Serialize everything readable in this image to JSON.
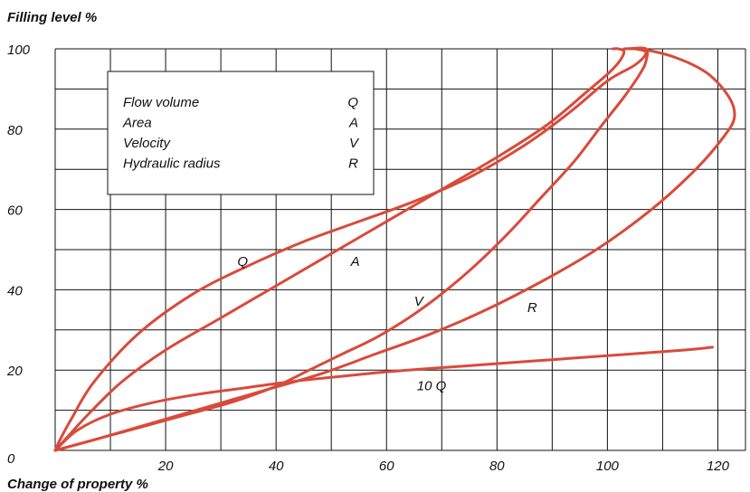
{
  "chart_data": {
    "type": "line",
    "ylabel": "Filling level %",
    "xlabel": "Change of property %",
    "xlim": [
      0,
      125
    ],
    "ylim": [
      0,
      100
    ],
    "x_ticks": [
      0,
      20,
      40,
      60,
      80,
      100,
      120
    ],
    "y_ticks": [
      20,
      40,
      60,
      80,
      100
    ],
    "x_grid_step": 10,
    "y_grid_step": 10,
    "grid": true,
    "line_color": "#d94a3a",
    "legend": {
      "position": "top-left",
      "entries": [
        {
          "name": "Flow volume",
          "symbol": "Q"
        },
        {
          "name": "Area",
          "symbol": "A"
        },
        {
          "name": "Velocity",
          "symbol": "V"
        },
        {
          "name": "Hydraulic radius",
          "symbol": "R"
        }
      ]
    },
    "series": [
      {
        "key": "Q",
        "points": [
          [
            0,
            0
          ],
          [
            1,
            3
          ],
          [
            3,
            8
          ],
          [
            7,
            17
          ],
          [
            15,
            29
          ],
          [
            25,
            39
          ],
          [
            35,
            46
          ],
          [
            45,
            52
          ],
          [
            55,
            57
          ],
          [
            65,
            62
          ],
          [
            75,
            68
          ],
          [
            85,
            76
          ],
          [
            93,
            84
          ],
          [
            100,
            92
          ],
          [
            105,
            96
          ],
          [
            107,
            99
          ],
          [
            105,
            100
          ],
          [
            103,
            100
          ]
        ]
      },
      {
        "key": "A",
        "points": [
          [
            0,
            0
          ],
          [
            2,
            3
          ],
          [
            6,
            9
          ],
          [
            12,
            17
          ],
          [
            20,
            25
          ],
          [
            30,
            33
          ],
          [
            40,
            41
          ],
          [
            50,
            49
          ],
          [
            60,
            57
          ],
          [
            70,
            65
          ],
          [
            80,
            73
          ],
          [
            89,
            81
          ],
          [
            96,
            89
          ],
          [
            101,
            95
          ],
          [
            103,
            99
          ],
          [
            102,
            100
          ],
          [
            101,
            100
          ]
        ]
      },
      {
        "key": "V",
        "points": [
          [
            0,
            0
          ],
          [
            8,
            3
          ],
          [
            16,
            6
          ],
          [
            24,
            9
          ],
          [
            32,
            12
          ],
          [
            40,
            16
          ],
          [
            46,
            20
          ],
          [
            52,
            24
          ],
          [
            58,
            28
          ],
          [
            64,
            33
          ],
          [
            70,
            39
          ],
          [
            76,
            46
          ],
          [
            82,
            54
          ],
          [
            88,
            63
          ],
          [
            94,
            72
          ],
          [
            99,
            81
          ],
          [
            103,
            88
          ],
          [
            106,
            94
          ],
          [
            107,
            97
          ],
          [
            107,
            100
          ],
          [
            104,
            100
          ]
        ]
      },
      {
        "key": "R",
        "points": [
          [
            0,
            0
          ],
          [
            8,
            3
          ],
          [
            18,
            7
          ],
          [
            28,
            11
          ],
          [
            38,
            15
          ],
          [
            48,
            19
          ],
          [
            58,
            24
          ],
          [
            68,
            29
          ],
          [
            78,
            35
          ],
          [
            88,
            42
          ],
          [
            98,
            50
          ],
          [
            108,
            60
          ],
          [
            116,
            70
          ],
          [
            121,
            78
          ],
          [
            123,
            83
          ],
          [
            122,
            88
          ],
          [
            118,
            94
          ],
          [
            112,
            98
          ],
          [
            106,
            100
          ],
          [
            104,
            100
          ]
        ]
      },
      {
        "key": "10 Q",
        "points": [
          [
            0,
            0
          ],
          [
            4,
            5
          ],
          [
            10,
            9
          ],
          [
            18,
            12
          ],
          [
            26,
            14
          ],
          [
            34,
            15.5
          ],
          [
            42,
            17
          ],
          [
            50,
            18.2
          ],
          [
            58,
            19.3
          ],
          [
            66,
            20.2
          ],
          [
            76,
            21.2
          ],
          [
            86,
            22.2
          ],
          [
            96,
            23.2
          ],
          [
            106,
            24.2
          ],
          [
            114,
            25
          ],
          [
            119,
            25.7
          ]
        ]
      }
    ],
    "annotations": [
      {
        "text": "Q",
        "x": 33,
        "y": 46
      },
      {
        "text": "A",
        "x": 53.5,
        "y": 46
      },
      {
        "text": "V",
        "x": 65,
        "y": 36
      },
      {
        "text": "R",
        "x": 85.5,
        "y": 34.5
      },
      {
        "text": "10 Q",
        "x": 65.5,
        "y": 15
      }
    ]
  }
}
